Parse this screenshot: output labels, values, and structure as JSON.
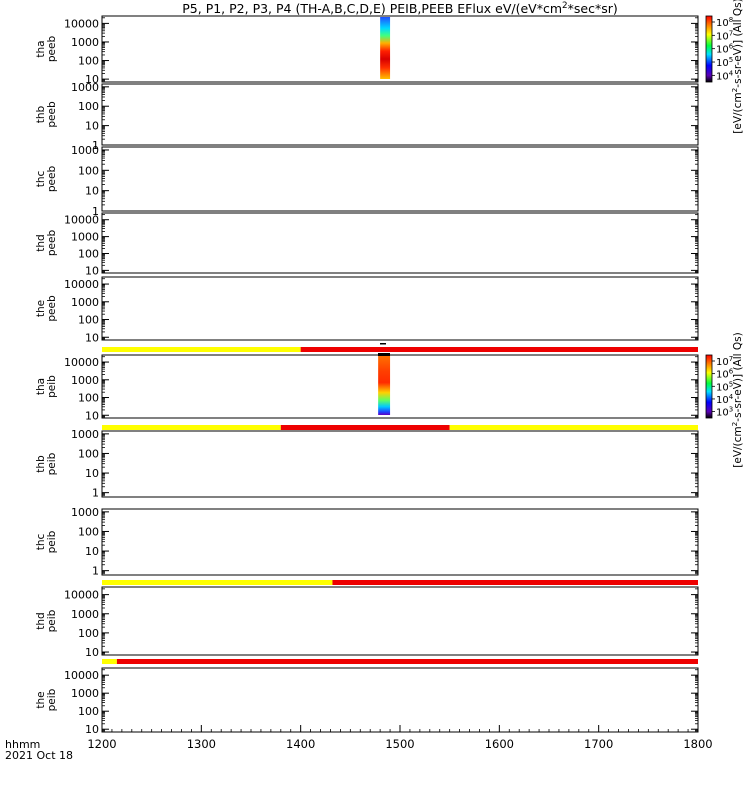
{
  "chart_data": {
    "type": "heatmap",
    "title": "P5, P1, P2, P3, P4 (TH-A,B,C,D,E) PEIB,PEEB EFlux eV/(eV*cm^2*sec*sr)",
    "x_ticks": [
      1200,
      1300,
      1400,
      1500,
      1600,
      1700,
      1800
    ],
    "xlim": [
      1200,
      1800
    ],
    "x_label_lines": [
      "hhmm",
      "2021 Oct 18"
    ],
    "panels": [
      {
        "id": "tha-peeb",
        "ylabel": [
          "tha",
          "peeb"
        ],
        "ylim": [
          7,
          25000
        ],
        "ticks": [
          10,
          100,
          1000,
          10000
        ],
        "spectrum": {
          "x_start": 1480,
          "x_end": 1490,
          "type": "electron"
        },
        "status_bar": null
      },
      {
        "id": "thb-peeb",
        "ylabel": [
          "thb",
          "peeb"
        ],
        "ylim": [
          1,
          1400
        ],
        "ticks": [
          1,
          10,
          100,
          1000
        ],
        "spectrum": null,
        "status_bar": null
      },
      {
        "id": "thc-peeb",
        "ylabel": [
          "thc",
          "peeb"
        ],
        "ylim": [
          1,
          1400
        ],
        "ticks": [
          1,
          10,
          100,
          1000
        ],
        "spectrum": null,
        "status_bar": null
      },
      {
        "id": "thd-peeb",
        "ylabel": [
          "thd",
          "peeb"
        ],
        "ylim": [
          7,
          25000
        ],
        "ticks": [
          10,
          100,
          1000,
          10000
        ],
        "spectrum": null,
        "status_bar": null
      },
      {
        "id": "the-peeb",
        "ylabel": [
          "the",
          "peeb"
        ],
        "ylim": [
          7,
          25000
        ],
        "ticks": [
          10,
          100,
          1000,
          10000
        ],
        "spectrum": null,
        "status_bar": [
          {
            "from": 1200,
            "to": 1400,
            "color": "yellow"
          },
          {
            "from": 1400,
            "to": 1800,
            "color": "red"
          }
        ]
      },
      {
        "id": "tha-peib",
        "ylabel": [
          "tha",
          "peib"
        ],
        "ylim": [
          7,
          25000
        ],
        "ticks": [
          10,
          100,
          1000,
          10000
        ],
        "spectrum": {
          "x_start": 1478,
          "x_end": 1490,
          "type": "ion"
        },
        "status_bar": [
          {
            "from": 1200,
            "to": 1380,
            "color": "yellow"
          },
          {
            "from": 1380,
            "to": 1550,
            "color": "red"
          },
          {
            "from": 1550,
            "to": 1800,
            "color": "yellow"
          }
        ]
      },
      {
        "id": "thb-peib",
        "ylabel": [
          "thb",
          "peib"
        ],
        "ylim": [
          0.6,
          1400
        ],
        "ticks": [
          1,
          10,
          100,
          1000
        ],
        "spectrum": null,
        "status_bar": null
      },
      {
        "id": "thc-peib",
        "ylabel": [
          "thc",
          "peib"
        ],
        "ylim": [
          0.6,
          1400
        ],
        "ticks": [
          1,
          10,
          100,
          1000
        ],
        "spectrum": null,
        "status_bar": [
          {
            "from": 1200,
            "to": 1432,
            "color": "yellow"
          },
          {
            "from": 1432,
            "to": 1800,
            "color": "red"
          }
        ]
      },
      {
        "id": "thd-peib",
        "ylabel": [
          "thd",
          "peib"
        ],
        "ylim": [
          7,
          25000
        ],
        "ticks": [
          10,
          100,
          1000,
          10000
        ],
        "spectrum": null,
        "status_bar": [
          {
            "from": 1200,
            "to": 1215,
            "color": "yellow"
          },
          {
            "from": 1215,
            "to": 1800,
            "color": "red"
          }
        ]
      },
      {
        "id": "the-peib",
        "ylabel": [
          "the",
          "peib"
        ],
        "ylim": [
          7,
          25000
        ],
        "ticks": [
          10,
          100,
          1000,
          10000
        ],
        "spectrum": null,
        "status_bar": null
      }
    ],
    "colorbars": [
      {
        "id": "electron-colorbar",
        "labels": [
          "10^8",
          "10^7",
          "10^6",
          "10^5",
          "10^4"
        ],
        "title": "[eV/(cm^2-s-sr-eV)] (All Qs)"
      },
      {
        "id": "ion-colorbar",
        "labels": [
          "10^7",
          "10^6",
          "10^5",
          "10^4",
          "10^3"
        ],
        "title": "[eV/(cm^2-s-sr-eV)] (All Qs)"
      }
    ],
    "colors": {
      "yellow": "#ffff00",
      "red": "#ee0000"
    }
  }
}
